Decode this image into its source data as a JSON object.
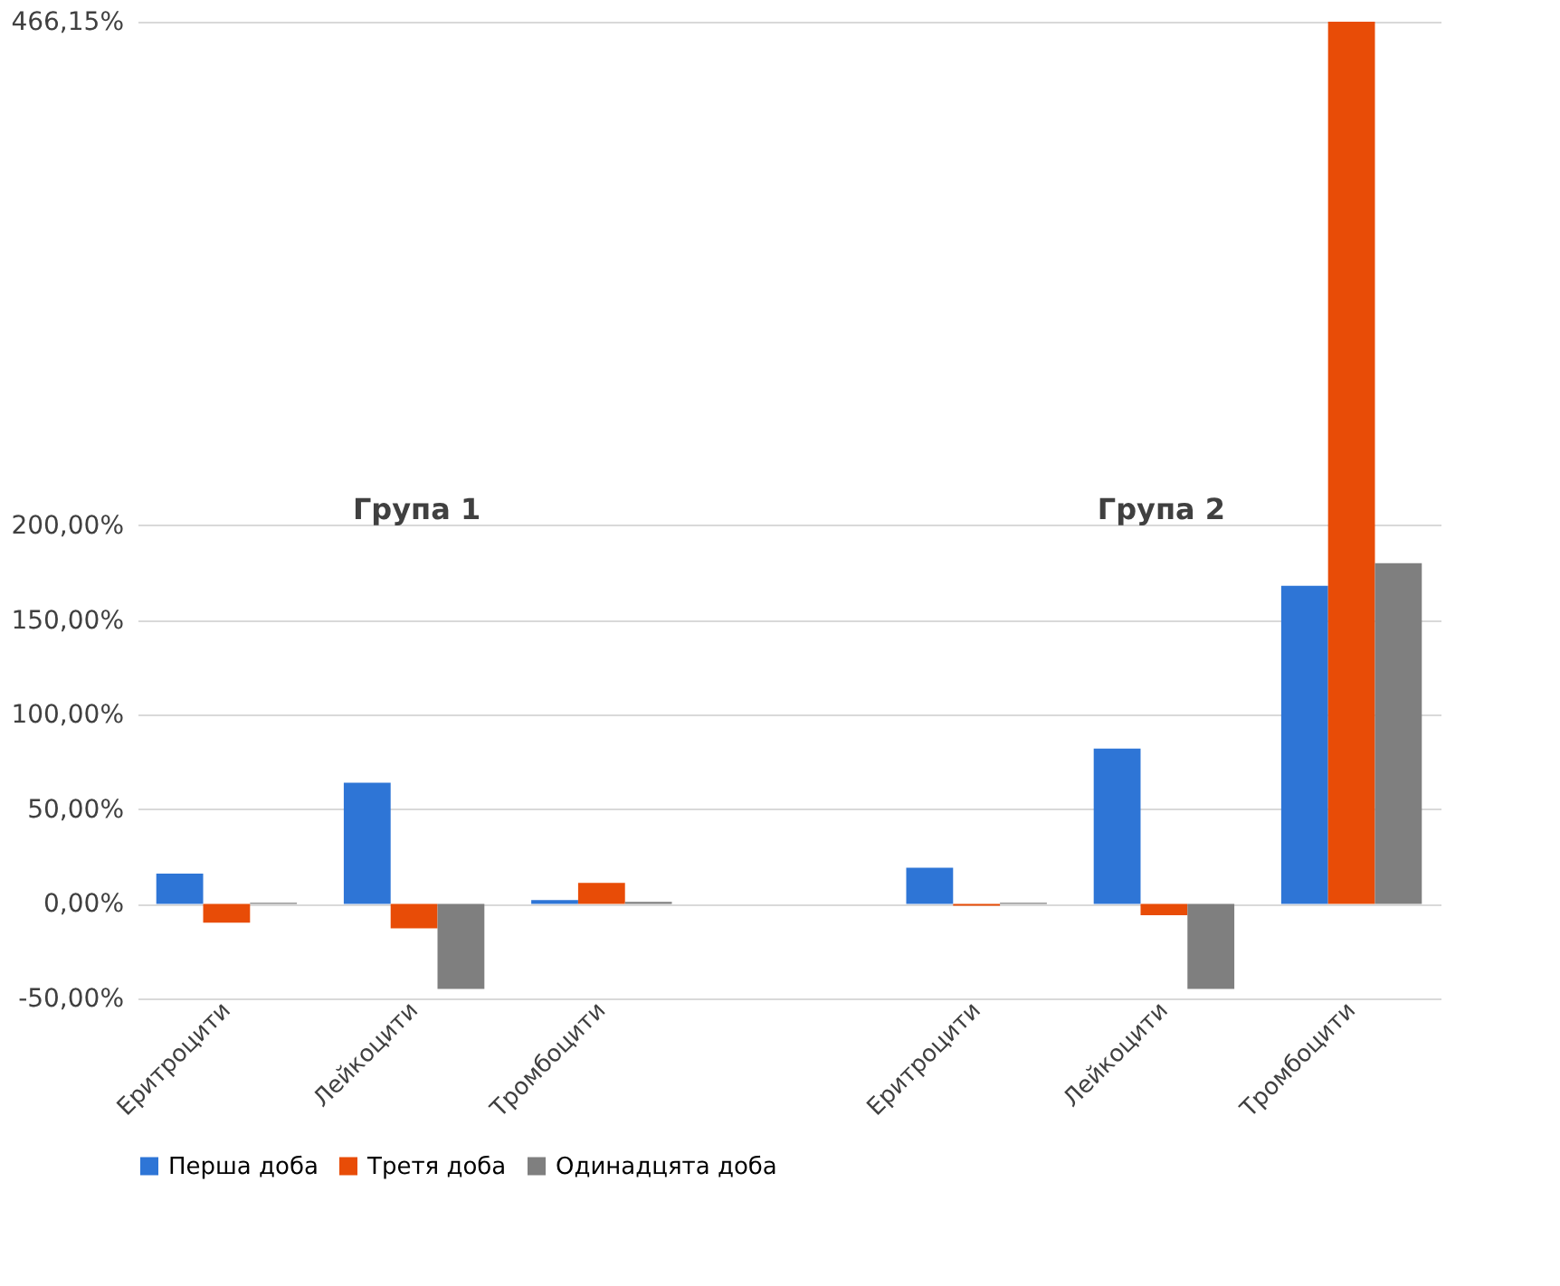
{
  "chart_data": {
    "type": "bar",
    "categories": [
      "Еритроцити",
      "Лейкоцити",
      "Тромбоцити",
      null,
      "Еритроцити",
      "Лейкоцити",
      "Тромбоцити"
    ],
    "series": [
      {
        "name": "Перша доба",
        "color": "#2e75d6",
        "values": [
          16,
          64,
          2,
          null,
          19,
          82,
          168
        ]
      },
      {
        "name": "Третя доба",
        "color": "#e84c07",
        "values": [
          -10,
          -13,
          11,
          null,
          -1,
          -6,
          466.15
        ]
      },
      {
        "name": "Одинадцята доба",
        "color": "#7f7f7f",
        "values": [
          0.5,
          -45,
          1,
          null,
          0.5,
          -45,
          180
        ]
      }
    ],
    "ylim": [
      -50,
      466.15
    ],
    "yticks": [
      {
        "value": -50,
        "label": "-50,00%"
      },
      {
        "value": 0,
        "label": "0,00%"
      },
      {
        "value": 50,
        "label": "50,00%"
      },
      {
        "value": 100,
        "label": "100,00%"
      },
      {
        "value": 150,
        "label": "150,00%"
      },
      {
        "value": 200,
        "label": "200,00%"
      },
      {
        "value": 466.15,
        "label": "466,15%"
      }
    ],
    "annotations": [
      "Група 1",
      "Група 2"
    ],
    "grid": "y",
    "legend": "bottom"
  }
}
